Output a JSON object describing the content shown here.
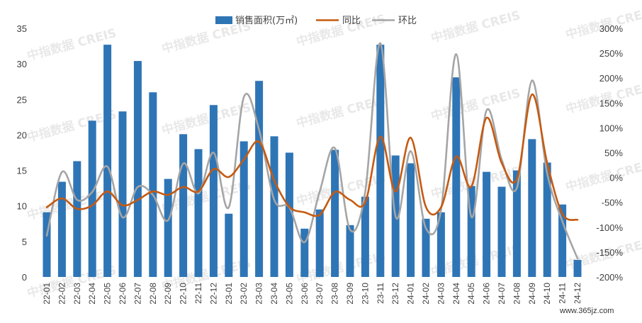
{
  "chart_data": {
    "type": "bar",
    "categories": [
      "22-01",
      "22-02",
      "22-03",
      "22-04",
      "22-05",
      "22-06",
      "22-07",
      "22-08",
      "22-09",
      "22-10",
      "22-11",
      "22-12",
      "23-01",
      "23-02",
      "23-03",
      "23-04",
      "23-05",
      "23-06",
      "23-07",
      "23-08",
      "23-09",
      "23-10",
      "23-11",
      "23-12",
      "24-01",
      "24-02",
      "24-03",
      "24-04",
      "24-05",
      "24-06",
      "24-07",
      "24-08",
      "24-09",
      "24-10",
      "24-11",
      "24-12"
    ],
    "series": [
      {
        "name": "销售面积(万㎡)",
        "type": "bar",
        "axis": "left",
        "color": "#2E75B6",
        "values": [
          9.1,
          13.4,
          16.3,
          22.0,
          32.7,
          23.3,
          30.4,
          26.0,
          13.8,
          20.1,
          18.0,
          24.2,
          8.9,
          19.1,
          27.6,
          19.8,
          17.5,
          6.8,
          9.5,
          17.9,
          7.3,
          11.3,
          32.7,
          17.1,
          16.0,
          8.2,
          9.1,
          28.1,
          12.8,
          14.8,
          12.7,
          15.0,
          19.4,
          16.1,
          10.2,
          2.4
        ]
      },
      {
        "name": "同比",
        "type": "line",
        "axis": "right",
        "unit": "%",
        "color": "#C55A11",
        "values": [
          -60,
          -42,
          -63,
          -56,
          -28,
          -56,
          -45,
          -28,
          -35,
          -19,
          -28,
          17,
          1,
          36,
          72,
          -6,
          -59,
          -70,
          -75,
          -29,
          -45,
          -50,
          82,
          -28,
          80,
          -59,
          -60,
          42,
          -18,
          120,
          29,
          -3,
          167,
          29,
          -73,
          -85
        ]
      },
      {
        "name": "环比",
        "type": "line",
        "axis": "right",
        "unit": "%",
        "color": "#A5A5A5",
        "values": [
          -117,
          11,
          -45,
          -29,
          22,
          -80,
          -19,
          -35,
          -86,
          28,
          -32,
          50,
          -60,
          162,
          96,
          -45,
          -60,
          -130,
          -28,
          59,
          -105,
          -29,
          270,
          -78,
          53,
          -102,
          -65,
          248,
          -79,
          135,
          36,
          -21,
          195,
          8,
          -88,
          -163
        ]
      }
    ],
    "ylim": [
      0,
      35
    ],
    "y2lim": [
      -200,
      300
    ],
    "y_ticks": [
      "0",
      "5",
      "10",
      "15",
      "20",
      "25",
      "30",
      "35"
    ],
    "y2_ticks": [
      "-200%",
      "-150%",
      "-100%",
      "-50%",
      "0%",
      "50%",
      "100%",
      "150%",
      "200%",
      "250%",
      "300%"
    ],
    "legend": "top",
    "grid": false
  },
  "watermark": "中指数据 CREIS",
  "site_mark": "www.365jz.com"
}
